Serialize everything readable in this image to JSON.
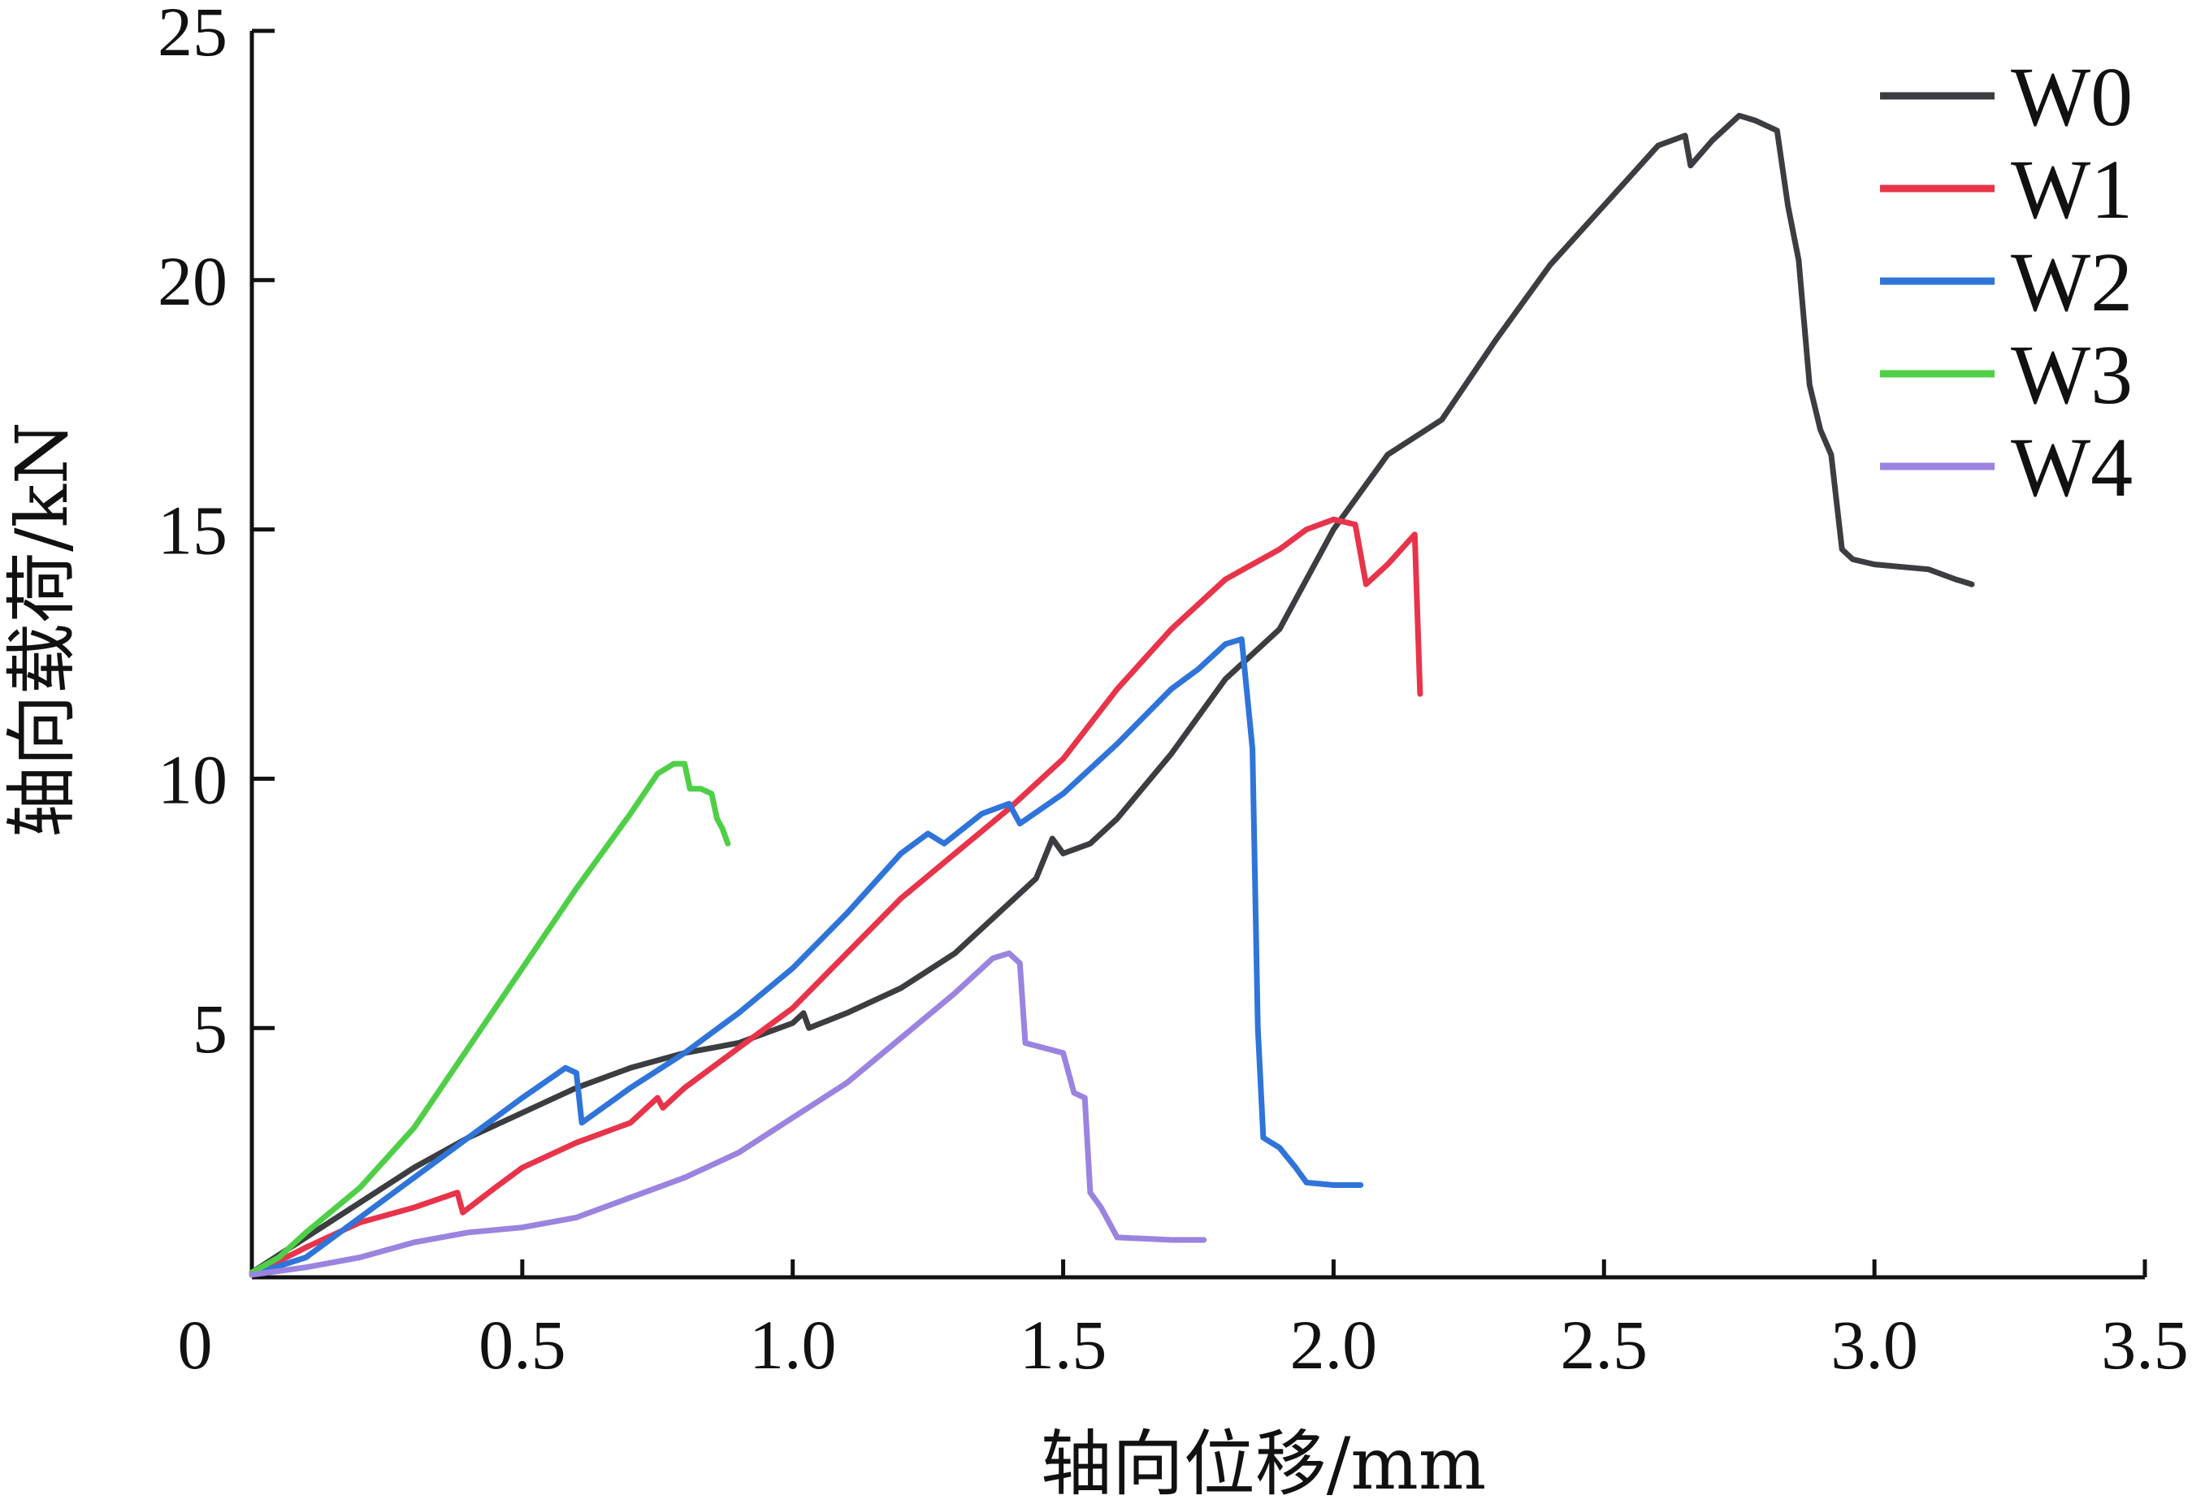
{
  "chart_data": {
    "type": "line",
    "title": "",
    "xlabel": "轴向位移/mm",
    "ylabel": "轴向载荷/kN",
    "xlim": [
      0,
      3.5
    ],
    "ylim": [
      0,
      25
    ],
    "origin_label": "0",
    "xticks": [
      {
        "value": 0.5,
        "label": "0.5"
      },
      {
        "value": 1.0,
        "label": "1.0"
      },
      {
        "value": 1.5,
        "label": "1.5"
      },
      {
        "value": 2.0,
        "label": "2.0"
      },
      {
        "value": 2.5,
        "label": "2.5"
      },
      {
        "value": 3.0,
        "label": "3.0"
      },
      {
        "value": 3.5,
        "label": "3.5"
      }
    ],
    "yticks": [
      {
        "value": 5,
        "label": "5"
      },
      {
        "value": 10,
        "label": "10"
      },
      {
        "value": 15,
        "label": "15"
      },
      {
        "value": 20,
        "label": "20"
      },
      {
        "value": 25,
        "label": "25"
      }
    ],
    "legend_position": "top-right",
    "series": [
      {
        "name": "W0",
        "color": "#3b3d40",
        "points": [
          [
            0,
            0.1
          ],
          [
            0.1,
            0.8
          ],
          [
            0.2,
            1.5
          ],
          [
            0.3,
            2.2
          ],
          [
            0.4,
            2.8
          ],
          [
            0.5,
            3.3
          ],
          [
            0.6,
            3.8
          ],
          [
            0.7,
            4.2
          ],
          [
            0.8,
            4.5
          ],
          [
            0.9,
            4.7
          ],
          [
            1.0,
            5.1
          ],
          [
            1.02,
            5.3
          ],
          [
            1.03,
            5.0
          ],
          [
            1.1,
            5.3
          ],
          [
            1.2,
            5.8
          ],
          [
            1.3,
            6.5
          ],
          [
            1.4,
            7.5
          ],
          [
            1.45,
            8.0
          ],
          [
            1.48,
            8.8
          ],
          [
            1.5,
            8.5
          ],
          [
            1.55,
            8.7
          ],
          [
            1.6,
            9.2
          ],
          [
            1.7,
            10.5
          ],
          [
            1.8,
            12.0
          ],
          [
            1.9,
            13.0
          ],
          [
            2.0,
            15.0
          ],
          [
            2.1,
            16.5
          ],
          [
            2.2,
            17.2
          ],
          [
            2.3,
            18.8
          ],
          [
            2.4,
            20.3
          ],
          [
            2.5,
            21.5
          ],
          [
            2.6,
            22.7
          ],
          [
            2.65,
            22.9
          ],
          [
            2.66,
            22.3
          ],
          [
            2.7,
            22.8
          ],
          [
            2.75,
            23.3
          ],
          [
            2.78,
            23.2
          ],
          [
            2.82,
            23.0
          ],
          [
            2.84,
            21.5
          ],
          [
            2.86,
            20.4
          ],
          [
            2.88,
            17.9
          ],
          [
            2.9,
            17.0
          ],
          [
            2.92,
            16.5
          ],
          [
            2.94,
            14.6
          ],
          [
            2.96,
            14.4
          ],
          [
            3.0,
            14.3
          ],
          [
            3.1,
            14.2
          ],
          [
            3.15,
            14.0
          ],
          [
            3.18,
            13.9
          ]
        ]
      },
      {
        "name": "W1",
        "color": "#e8344a",
        "points": [
          [
            0,
            0.05
          ],
          [
            0.1,
            0.6
          ],
          [
            0.2,
            1.1
          ],
          [
            0.3,
            1.4
          ],
          [
            0.38,
            1.7
          ],
          [
            0.39,
            1.3
          ],
          [
            0.45,
            1.8
          ],
          [
            0.5,
            2.2
          ],
          [
            0.6,
            2.7
          ],
          [
            0.7,
            3.1
          ],
          [
            0.75,
            3.6
          ],
          [
            0.76,
            3.4
          ],
          [
            0.8,
            3.8
          ],
          [
            0.9,
            4.6
          ],
          [
            1.0,
            5.4
          ],
          [
            1.1,
            6.5
          ],
          [
            1.2,
            7.6
          ],
          [
            1.3,
            8.5
          ],
          [
            1.4,
            9.4
          ],
          [
            1.5,
            10.4
          ],
          [
            1.6,
            11.8
          ],
          [
            1.7,
            13.0
          ],
          [
            1.8,
            14.0
          ],
          [
            1.9,
            14.6
          ],
          [
            1.95,
            15.0
          ],
          [
            2.0,
            15.2
          ],
          [
            2.04,
            15.1
          ],
          [
            2.06,
            13.9
          ],
          [
            2.1,
            14.3
          ],
          [
            2.15,
            14.9
          ],
          [
            2.16,
            11.7
          ]
        ]
      },
      {
        "name": "W2",
        "color": "#2f74d9",
        "points": [
          [
            0,
            0.05
          ],
          [
            0.1,
            0.4
          ],
          [
            0.2,
            1.2
          ],
          [
            0.3,
            2.0
          ],
          [
            0.4,
            2.8
          ],
          [
            0.5,
            3.6
          ],
          [
            0.58,
            4.2
          ],
          [
            0.6,
            4.1
          ],
          [
            0.61,
            3.1
          ],
          [
            0.7,
            3.8
          ],
          [
            0.8,
            4.5
          ],
          [
            0.9,
            5.3
          ],
          [
            1.0,
            6.2
          ],
          [
            1.1,
            7.3
          ],
          [
            1.2,
            8.5
          ],
          [
            1.25,
            8.9
          ],
          [
            1.28,
            8.7
          ],
          [
            1.35,
            9.3
          ],
          [
            1.4,
            9.5
          ],
          [
            1.42,
            9.1
          ],
          [
            1.5,
            9.7
          ],
          [
            1.6,
            10.7
          ],
          [
            1.7,
            11.8
          ],
          [
            1.75,
            12.2
          ],
          [
            1.8,
            12.7
          ],
          [
            1.83,
            12.8
          ],
          [
            1.85,
            10.6
          ],
          [
            1.86,
            5.0
          ],
          [
            1.87,
            2.8
          ],
          [
            1.9,
            2.6
          ],
          [
            1.93,
            2.2
          ],
          [
            1.95,
            1.9
          ],
          [
            2.0,
            1.85
          ],
          [
            2.05,
            1.85
          ]
        ]
      },
      {
        "name": "W3",
        "color": "#4fcf47",
        "points": [
          [
            0,
            0.1
          ],
          [
            0.05,
            0.4
          ],
          [
            0.1,
            0.9
          ],
          [
            0.2,
            1.8
          ],
          [
            0.3,
            3.0
          ],
          [
            0.4,
            4.6
          ],
          [
            0.5,
            6.2
          ],
          [
            0.6,
            7.8
          ],
          [
            0.7,
            9.3
          ],
          [
            0.75,
            10.1
          ],
          [
            0.78,
            10.3
          ],
          [
            0.8,
            10.3
          ],
          [
            0.81,
            9.8
          ],
          [
            0.83,
            9.8
          ],
          [
            0.85,
            9.7
          ],
          [
            0.86,
            9.2
          ],
          [
            0.87,
            9.0
          ],
          [
            0.88,
            8.7
          ]
        ]
      },
      {
        "name": "W4",
        "color": "#9b83e0",
        "points": [
          [
            0,
            0.05
          ],
          [
            0.1,
            0.2
          ],
          [
            0.2,
            0.4
          ],
          [
            0.3,
            0.7
          ],
          [
            0.4,
            0.9
          ],
          [
            0.5,
            1.0
          ],
          [
            0.6,
            1.2
          ],
          [
            0.7,
            1.6
          ],
          [
            0.8,
            2.0
          ],
          [
            0.9,
            2.5
          ],
          [
            1.0,
            3.2
          ],
          [
            1.1,
            3.9
          ],
          [
            1.2,
            4.8
          ],
          [
            1.3,
            5.7
          ],
          [
            1.37,
            6.4
          ],
          [
            1.4,
            6.5
          ],
          [
            1.42,
            6.3
          ],
          [
            1.43,
            4.7
          ],
          [
            1.5,
            4.5
          ],
          [
            1.52,
            3.7
          ],
          [
            1.54,
            3.6
          ],
          [
            1.55,
            1.7
          ],
          [
            1.57,
            1.4
          ],
          [
            1.6,
            0.8
          ],
          [
            1.7,
            0.75
          ],
          [
            1.76,
            0.75
          ]
        ]
      }
    ]
  }
}
